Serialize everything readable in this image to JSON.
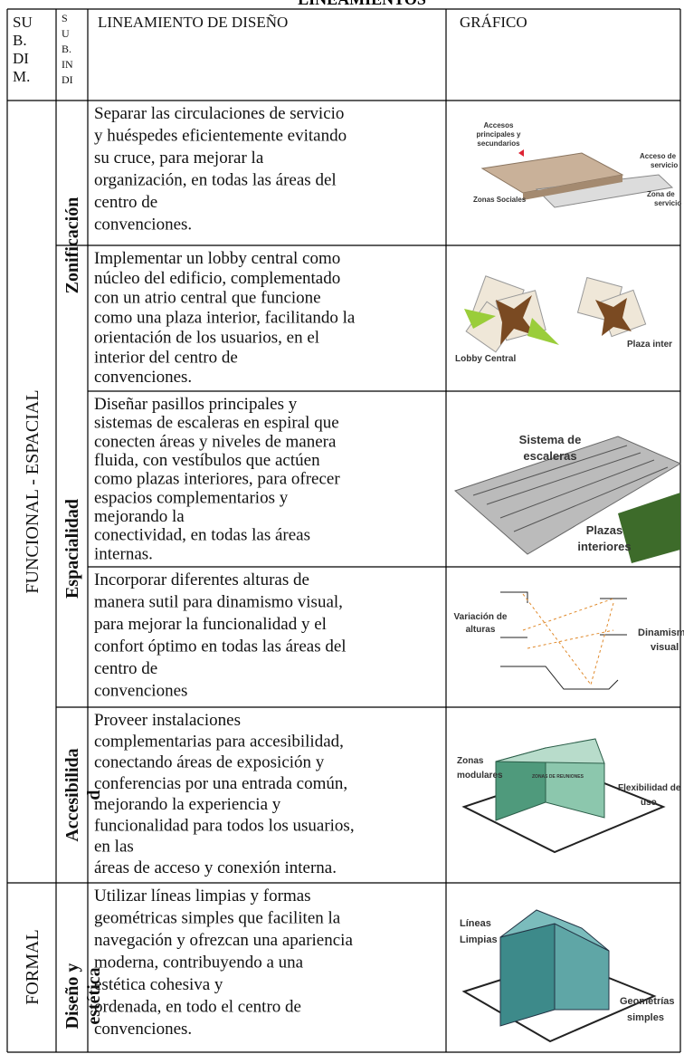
{
  "page_title": "LINEAMIENTOS",
  "table": {
    "headers": [
      [
        "SU",
        "B.",
        "DI",
        "M."
      ],
      [
        "S",
        "U",
        "B.",
        "IN",
        "DI"
      ],
      "LINEAMIENTO DE DISEÑO",
      "GRÁFICO"
    ],
    "dimensions": [
      "FUNCIONAL - ESPACIAL",
      "FORMAL"
    ],
    "indicators": [
      [
        "Zonificación"
      ],
      [
        "Espacialidad"
      ],
      [
        "Accesibilida",
        "d"
      ],
      [
        "Diseño y",
        "estética"
      ]
    ],
    "rows": [
      {
        "lineamiento": [
          "Separar las circulaciones  de servicio",
          "y huéspedes  eficientemente evitando",
          "su cruce, para mejorar la",
          "organización, en todas  las áreas del",
          "centro de",
          "convenciones."
        ],
        "grafico": [
          "Accesos",
          "principales y",
          "secundarios",
          "Zonas Sociales",
          "Acceso de",
          "servicio",
          "Zona de",
          "servicio"
        ]
      },
      {
        "lineamiento": [
          "Implementar un lobby  central como",
          "núcleo del  edificio, complementado",
          "con un atrio central que  funcione",
          "como una plaza  interior, facilitando la",
          "orientación de los  usuarios, en el",
          "interior  del centro de",
          "convenciones."
        ],
        "grafico": [
          "Lobby Central",
          "Plaza inter"
        ]
      },
      {
        "lineamiento": [
          "Diseñar pasillos  principales y",
          "sistemas de  escaleras en espiral que",
          "conecten áreas y niveles  de manera",
          "fluida, con  vestíbulos que actúen",
          "como plazas interiores,  para ofrecer",
          "espacios  complementarios y",
          "mejorando la",
          "conectividad, en todas  las áreas",
          "internas."
        ],
        "grafico": [
          "Sistema de",
          "escaleras",
          "Plazas",
          "interiores"
        ]
      },
      {
        "lineamiento": [
          "Incorporar diferentes  alturas de",
          "manera sutil  para dinamismo visual,",
          "para mejorar la  funcionalidad y el",
          "confort óptimo en todas  las áreas del",
          "centro de",
          "convenciones"
        ],
        "grafico": [
          "Variación de",
          "alturas",
          "Dinamism",
          "visual"
        ]
      },
      {
        "lineamiento": [
          "Proveer instalaciones",
          "complementarias para  accesibilidad,",
          "conectando áreas de  exposición y",
          "conferencias por una  entrada común,",
          "mejorando la experiencia  y",
          "funcionalidad para  todos los usuarios,",
          "en las",
          "áreas de acceso y  conexión interna."
        ],
        "grafico": [
          "Zonas",
          "modulares",
          "ZONAS DE REUNIONES",
          "Flexibilidad de",
          "uso"
        ]
      },
      {
        "lineamiento": [
          "Utilizar líneas limpias  y  formas",
          "geométricas  simples que faciliten la",
          "navegación y ofrezcan  una apariencia",
          "moderna,  contribuyendo a una",
          "estética cohesiva y",
          "ordenada, en todo el  centro de",
          "convenciones."
        ],
        "grafico": [
          "Líneas",
          "Limpias",
          "Geometrías",
          "simples"
        ]
      }
    ]
  }
}
